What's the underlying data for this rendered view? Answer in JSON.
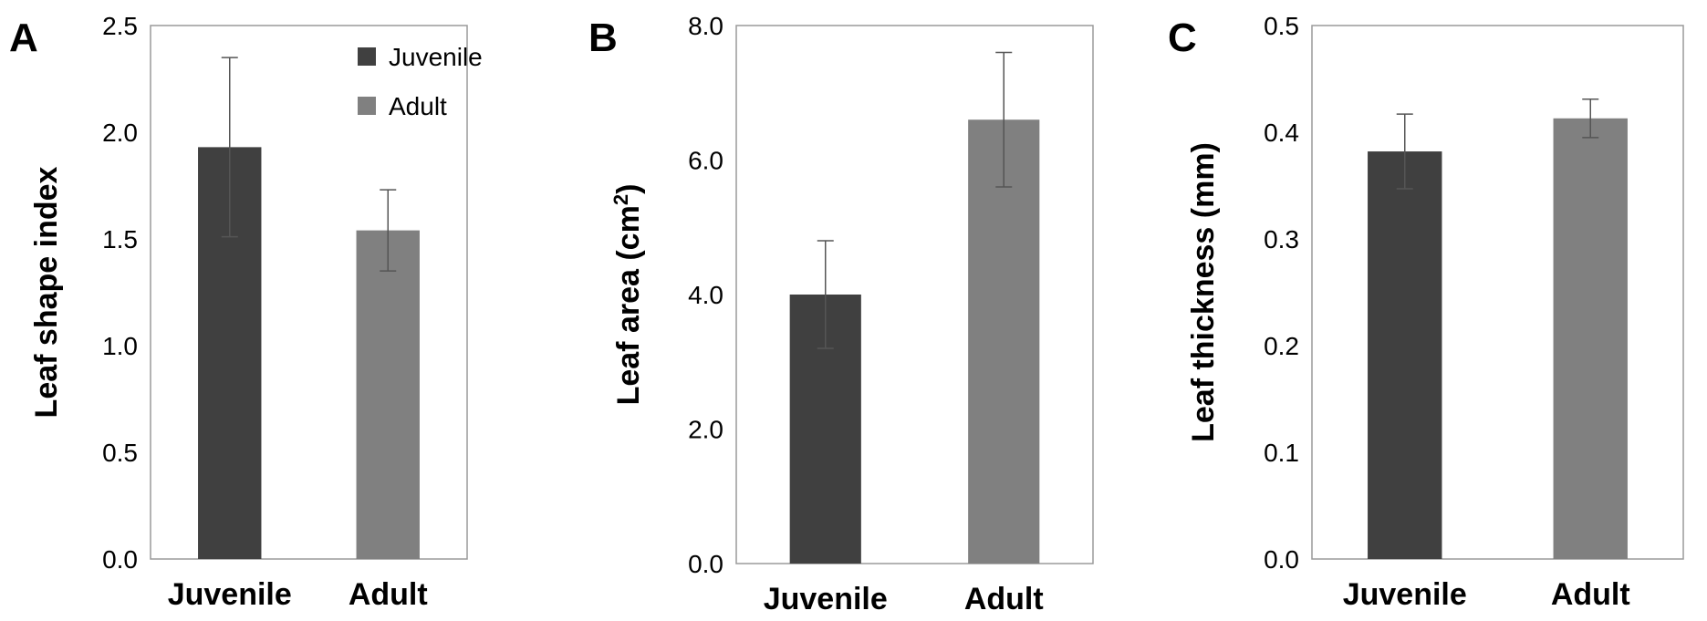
{
  "colors": {
    "juvenile": "#404040",
    "adult": "#808080",
    "frame": "#9a9a9a",
    "error_bar": "#555555"
  },
  "legend": {
    "placement": "top-right of panel A",
    "items": [
      {
        "label": "Juvenile",
        "color": "#404040"
      },
      {
        "label": "Adult",
        "color": "#808080"
      }
    ]
  },
  "chart_data": [
    {
      "type": "bar",
      "panel": "A",
      "ylabel": "Leaf shape index",
      "ylabel_sup": "",
      "ylabel_end": "",
      "categories": [
        "Juvenile",
        "Adult"
      ],
      "values": [
        1.93,
        1.54
      ],
      "errors": [
        0.42,
        0.19
      ],
      "ylim": [
        0,
        2.5
      ],
      "yticks": [
        "0.0",
        "0.5",
        "1.0",
        "1.5",
        "2.0",
        "2.5"
      ],
      "grid": false
    },
    {
      "type": "bar",
      "panel": "B",
      "ylabel": "Leaf area (cm",
      "ylabel_sup": "2",
      "ylabel_end": ")",
      "categories": [
        "Juvenile",
        "Adult"
      ],
      "values": [
        4.0,
        6.6
      ],
      "errors": [
        0.8,
        1.0
      ],
      "ylim": [
        0,
        8.0
      ],
      "yticks": [
        "0.0",
        "2.0",
        "4.0",
        "6.0",
        "8.0"
      ],
      "grid": false
    },
    {
      "type": "bar",
      "panel": "C",
      "ylabel": "Leaf thickness (mm)",
      "ylabel_sup": "",
      "ylabel_end": "",
      "categories": [
        "Juvenile",
        "Adult"
      ],
      "values": [
        0.382,
        0.413
      ],
      "errors": [
        0.035,
        0.018
      ],
      "ylim": [
        0,
        0.5
      ],
      "yticks": [
        "0.0",
        "0.1",
        "0.2",
        "0.3",
        "0.4",
        "0.5"
      ],
      "grid": false
    }
  ]
}
